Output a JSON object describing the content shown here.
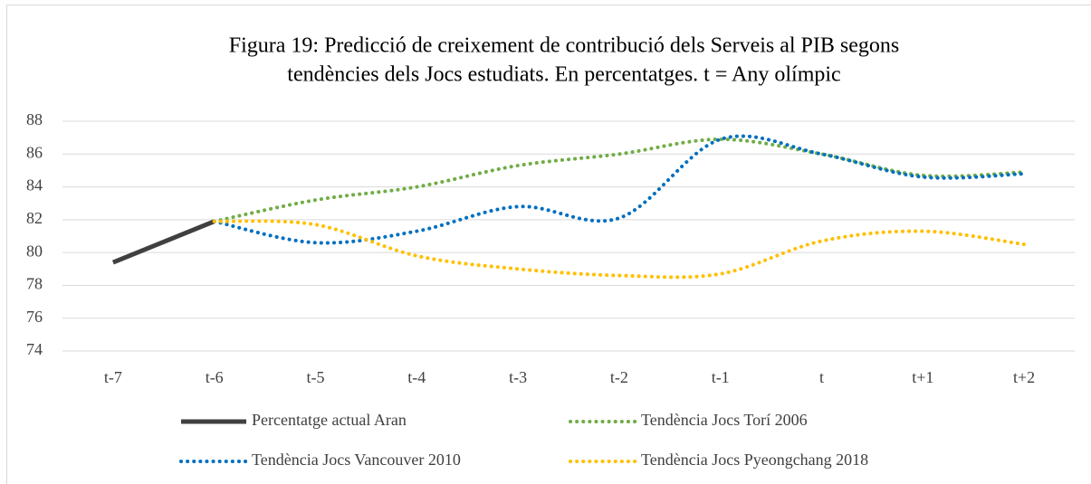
{
  "chart_data": {
    "type": "line",
    "title": [
      "Figura 19: Predicció de creixement de contribució dels Serveis al PIB segons",
      "tendències dels Jocs estudiats. En percentatges. t = Any olímpic"
    ],
    "categories": [
      "t-7",
      "t-6",
      "t-5",
      "t-4",
      "t-3",
      "t-2",
      "t-1",
      "t",
      "t+1",
      "t+2"
    ],
    "ylim": [
      74,
      88
    ],
    "yticks": [
      74,
      76,
      78,
      80,
      82,
      84,
      86,
      88
    ],
    "grid": true,
    "legend": "bottom",
    "series": [
      {
        "name": "Percentatge actual Aran",
        "color": "#404040",
        "style": "solid",
        "smooth": false,
        "values": [
          79.4,
          81.9,
          null,
          null,
          null,
          null,
          null,
          null,
          null,
          null
        ]
      },
      {
        "name": "Tendència Jocs Torí 2006",
        "color": "#70ad47",
        "style": "dotted",
        "smooth": true,
        "values": [
          null,
          81.9,
          83.2,
          84.0,
          85.3,
          86.0,
          86.9,
          86.0,
          84.7,
          84.9
        ]
      },
      {
        "name": "Tendència Jocs Vancouver 2010",
        "color": "#0070c0",
        "style": "dotted",
        "smooth": true,
        "values": [
          null,
          81.9,
          80.6,
          81.3,
          82.8,
          82.1,
          86.9,
          86.0,
          84.6,
          84.8
        ]
      },
      {
        "name": "Tendència Jocs Pyeongchang 2018",
        "color": "#ffc000",
        "style": "dotted",
        "smooth": true,
        "values": [
          null,
          81.9,
          81.7,
          79.8,
          79.0,
          78.6,
          78.7,
          80.7,
          81.3,
          80.5
        ]
      }
    ]
  }
}
